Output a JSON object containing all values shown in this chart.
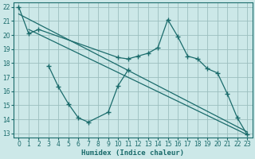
{
  "xlabel": "Humidex (Indice chaleur)",
  "background_color": "#cce8e8",
  "grid_color": "#9bbfbf",
  "line_color": "#1a6b6b",
  "xlim": [
    -0.5,
    23.5
  ],
  "ylim": [
    12.7,
    22.3
  ],
  "x_ticks": [
    0,
    1,
    2,
    3,
    4,
    5,
    6,
    7,
    8,
    9,
    10,
    11,
    12,
    13,
    14,
    15,
    16,
    17,
    18,
    19,
    20,
    21,
    22,
    23
  ],
  "y_ticks": [
    13,
    14,
    15,
    16,
    17,
    18,
    19,
    20,
    21,
    22
  ],
  "upper_jagged_x": [
    0,
    1,
    2,
    10,
    11,
    12,
    13,
    14,
    15,
    16,
    17,
    18,
    19,
    20,
    21,
    22,
    23
  ],
  "upper_jagged_y": [
    22,
    20.1,
    20.4,
    18.4,
    18.3,
    18.5,
    18.7,
    19.1,
    21.1,
    19.9,
    18.5,
    18.3,
    17.6,
    17.3,
    15.8,
    14.1,
    12.9
  ],
  "lower_jagged_x": [
    3,
    4,
    5,
    6,
    7,
    9,
    10,
    11
  ],
  "lower_jagged_y": [
    17.8,
    16.3,
    15.1,
    14.1,
    13.8,
    14.5,
    16.4,
    17.5
  ],
  "trend1_x": [
    0,
    23
  ],
  "trend1_y": [
    21.5,
    13.1
  ],
  "trend2_x": [
    1,
    23
  ],
  "trend2_y": [
    20.4,
    12.9
  ]
}
